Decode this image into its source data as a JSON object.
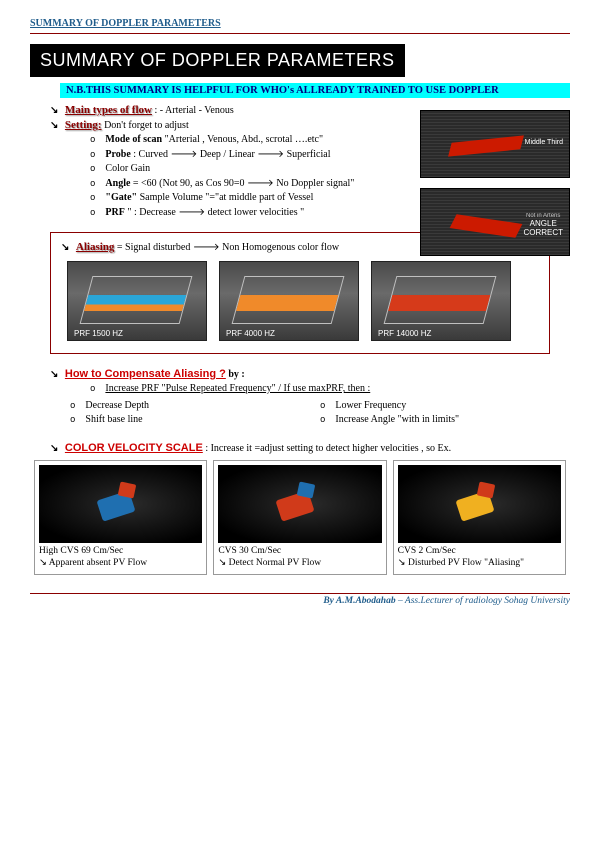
{
  "header": {
    "text": "SUMMARY OF DOPPLER PARAMETERS"
  },
  "title": "SUMMARY OF DOPPLER PARAMETERS",
  "nb": "N.B.THIS SUMMARY IS HELPFUL FOR WHO's ALLREADY TRAINED TO USE DOPPLER",
  "main_types": {
    "label": "Main types of flow",
    "items_text": ":   - Arterial       - Venous"
  },
  "setting": {
    "label": "Setting:",
    "tail": " Don't forget to adjust",
    "bullets": [
      {
        "html": "<b>Mode of scan</b> \"Arterial , Venous, Abd., scrotal ….etc\""
      },
      {
        "html": "<b>Probe</b> : Curved 🡒 Deep / Linear 🡒 Superficial"
      },
      {
        "html": "Color Gain"
      },
      {
        "html": "<b>Angle</b> = &lt;60 (Not 90, as Cos 90=0 🡒 No Doppler signal\""
      },
      {
        "html": "<b>\"Gate\"</b> Sample Volume \"=\"at middle part of Vessel"
      },
      {
        "html": "<b>PRF</b> \" : Decrease 🡒 detect lower velocities \""
      }
    ]
  },
  "right_images": {
    "img1_caption": "Middle Third",
    "img2_line1": "Not in Arteris",
    "img2_line2": "ANGLE",
    "img2_line3": "CORRECT"
  },
  "aliasing": {
    "label": "Aliasing",
    "text": " = Signal disturbed 🡒 Non Homogenous color flow",
    "thumbs": [
      {
        "prf": "PRF 1500 HZ",
        "band_color": "#2aa6d8",
        "band_color2": "#f08a2a"
      },
      {
        "prf": "PRF 4000 HZ",
        "band_color": "#f08a2a",
        "band_color2": "#f08a2a"
      },
      {
        "prf": "PRF 14000 HZ",
        "band_color": "#d63a1a",
        "band_color2": "#d63a1a"
      }
    ]
  },
  "howto": {
    "label": "How to Compensate Aliasing ?",
    "by": "   by :",
    "first": "Increase PRF \"Pulse Repeated Frequency\" / If use maxPRF, then :",
    "left": [
      "Decrease Depth",
      "Shift base line"
    ],
    "right": [
      "Lower Frequency",
      "Increase Angle \"with in limits\""
    ]
  },
  "cvs": {
    "label": "COLOR VELOCITY SCALE",
    "tail": " : Increase it =adjust setting to detect higher velocities , so Ex.",
    "cells": [
      {
        "title": "High CVS 69 Cm/Sec",
        "sub": "↘ Apparent absent PV Flow",
        "blob_color": "#1f6fb0",
        "blob2": "#d03a1a"
      },
      {
        "title": "CVS 30 Cm/Sec",
        "sub": "↘ Detect Normal PV Flow",
        "blob_color": "#d03a1a",
        "blob2": "#1f6fb0"
      },
      {
        "title": "CVS 2 Cm/Sec",
        "sub": "↘ Disturbed PV Flow \"Aliasing\"",
        "blob_color": "#f0b020",
        "blob2": "#d03a1a"
      }
    ]
  },
  "footer": {
    "by": "By A.M.Abodahab",
    "rest": " – Ass.Lecturer of radiology Sohag University"
  },
  "colors": {
    "rule": "#8a0000",
    "header": "#1f5c8b",
    "cyan": "#00ffff",
    "navy": "#000080",
    "red": "#cc0000"
  }
}
